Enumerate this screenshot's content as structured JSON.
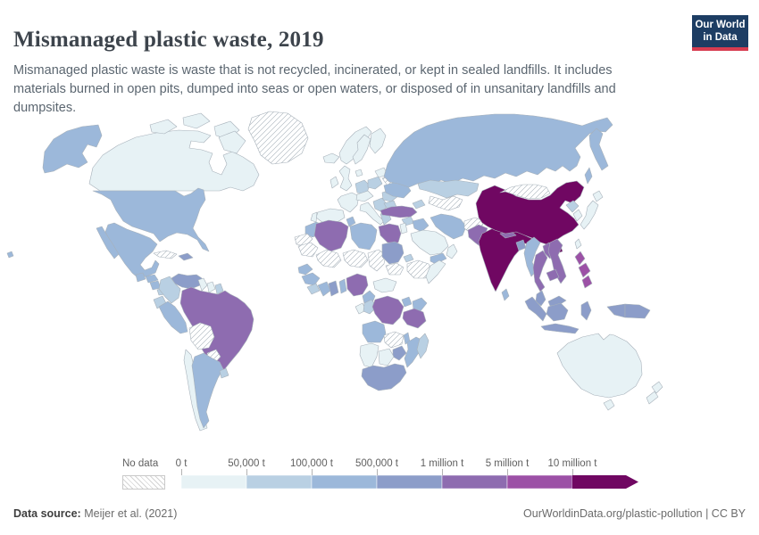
{
  "header": {
    "title": "Mismanaged plastic waste, 2019",
    "subtitle": "Mismanaged plastic waste is waste that is not recycled, incinerated, or kept in sealed landfills. It includes materials burned in open pits, dumped into seas or open waters, or disposed of in unsanitary landfills and dumpsites.",
    "logo": {
      "line1": "Our World",
      "line2": "in Data",
      "bg_color": "#1d3d63",
      "accent_color": "#d73c50"
    }
  },
  "footer": {
    "source_label": "Data source:",
    "source_value": " Meijer et al. (2021)",
    "credit": "OurWorldinData.org/plastic-pollution | CC BY"
  },
  "chart_data": {
    "type": "choropleth",
    "title": "Mismanaged plastic waste, 2019",
    "unit": "tonnes",
    "legend_no_data_label": "No data",
    "scale_ticks": [
      "0 t",
      "50,000 t",
      "100,000 t",
      "500,000 t",
      "1 million t",
      "5 million t",
      "10 million t"
    ],
    "bin_colors": {
      "bin1": "#e7f2f5",
      "bin2": "#b9d0e3",
      "bin3": "#9cb8da",
      "bin4": "#8c9dc9",
      "bin5": "#8e6cb0",
      "bin6": "#9c51a6",
      "bin7": "#700762"
    },
    "bin_ranges": {
      "bin1": "0 t – 50,000 t",
      "bin2": "50,000 t – 100,000 t",
      "bin3": "100,000 t – 500,000 t",
      "bin4": "500,000 t – 1 million t",
      "bin5": "1 million t – 5 million t",
      "bin6": "5 million t – 10 million t",
      "bin7": "10 million t +"
    },
    "map_colors": {
      "ocean": "#ffffff",
      "border": "#a7b1ba",
      "hatch_line": "#d4d4d4"
    },
    "regions": {
      "canada": "bin1",
      "arctic-islands": "bin1",
      "greenland": "no-data",
      "alaska": "bin3",
      "usa": "bin3",
      "hawaii": "bin3",
      "mexico": "bin3",
      "guatemala": "bin3",
      "honduras": "bin3",
      "nicaragua": "bin3",
      "costa-rica": "bin2",
      "panama": "bin3",
      "cuba": "no-data",
      "hispaniola": "bin4",
      "venezuela": "bin4",
      "colombia": "bin2",
      "guyana": "bin1",
      "suriname": "bin1",
      "french-guiana": "bin2",
      "ecuador": "bin2",
      "peru": "bin3",
      "brazil": "bin5",
      "bolivia": "no-data",
      "paraguay": "no-data",
      "chile": "bin1",
      "argentina": "bin3",
      "uruguay": "bin2",
      "iceland": "bin1",
      "norway": "bin1",
      "sweden": "bin1",
      "finland": "bin1",
      "denmark": "bin1",
      "uk": "bin1",
      "ireland": "bin1",
      "france": "bin1",
      "spain": "bin1",
      "portugal": "bin1",
      "germany": "bin2",
      "poland": "bin2",
      "czech-austria": "bin1",
      "italy": "bin1",
      "balkans": "bin2",
      "romania": "bin2",
      "bulgaria": "bin2",
      "greece": "bin2",
      "belarus": "no-data",
      "baltics": "bin1",
      "ukraine": "bin3",
      "turkey": "bin5",
      "russia": "bin3",
      "kazakhstan": "bin2",
      "central-asia": "no-data",
      "caucasus": "bin2",
      "syria": "bin2",
      "levant": "bin1",
      "iraq": "bin3",
      "saudi-arabia": "bin1",
      "yemen": "bin3",
      "oman": "bin1",
      "iran": "bin3",
      "afghanistan": "no-data",
      "pakistan": "bin5",
      "india": "bin7",
      "nepal": "bin5",
      "bangladesh": "bin4",
      "sri-lanka": "bin3",
      "china": "bin7",
      "mongolia": "no-data",
      "north-korea": "bin2",
      "south-korea": "bin1",
      "japan": "bin1",
      "taiwan": "bin1",
      "myanmar": "bin3",
      "thailand": "bin5",
      "laos": "bin5",
      "vietnam": "bin5",
      "cambodia": "bin5",
      "malaysia": "bin4",
      "philippines": "bin6",
      "indonesia": "bin4",
      "papua-new-guinea": "bin4",
      "australia": "bin1",
      "tasmania": "bin1",
      "new-zealand": "bin1",
      "morocco": "bin3",
      "western-sahara": "no-data",
      "mauritania": "no-data",
      "algeria": "bin5",
      "tunisia": "bin3",
      "libya": "bin3",
      "egypt": "bin5",
      "mali": "no-data",
      "niger": "no-data",
      "chad": "no-data",
      "sudan": "bin4",
      "south-sudan": "no-data",
      "eritrea": "bin2",
      "ethiopia": "no-data",
      "somalia": "bin1",
      "senegal": "bin3",
      "guinea": "bin3",
      "sierra-leone": "bin2",
      "ivory-coast": "bin3",
      "ghana": "bin4",
      "benin": "bin3",
      "nigeria": "bin5",
      "cameroon": "bin3",
      "car": "bin1",
      "gabon": "bin1",
      "congo": "bin2",
      "drc": "bin5",
      "uganda": "bin3",
      "kenya": "bin3",
      "tanzania": "bin5",
      "angola": "bin3",
      "zambia": "no-data",
      "malawi": "bin3",
      "mozambique": "bin3",
      "zimbabwe": "bin4",
      "namibia": "bin1",
      "botswana": "bin1",
      "south-africa": "bin4",
      "madagascar": "bin2"
    }
  }
}
